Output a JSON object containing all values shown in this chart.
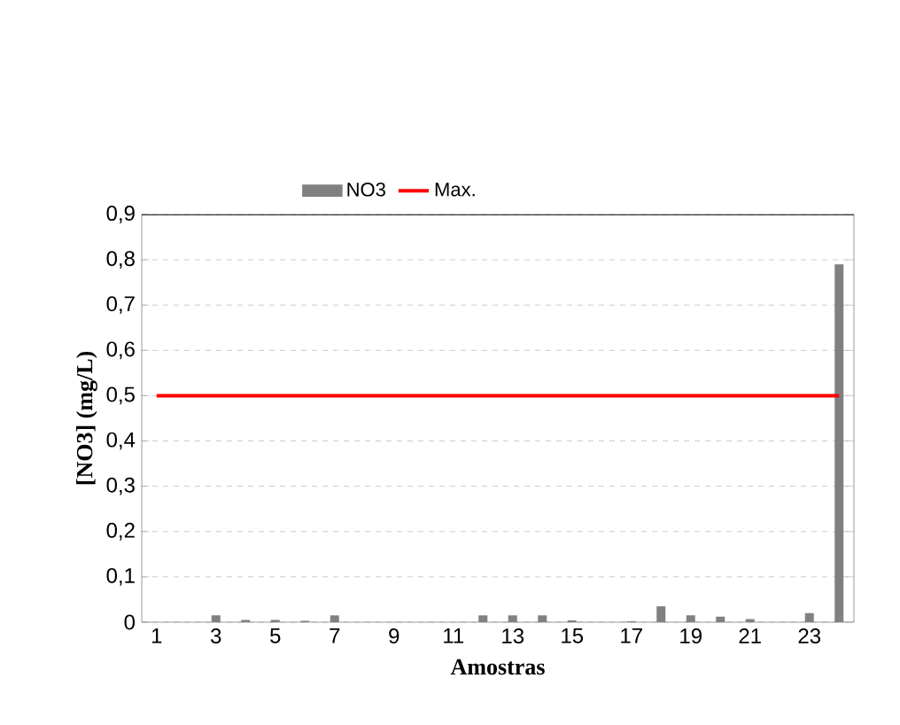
{
  "chart_data": {
    "type": "bar",
    "xlabel": "Amostras",
    "ylabel": "[NO3] (mg/L)",
    "categories": [
      "1",
      null,
      "3",
      null,
      "5",
      null,
      "7",
      null,
      "9",
      null,
      "11",
      null,
      "13",
      null,
      "15",
      null,
      "17",
      null,
      "19",
      null,
      "21",
      null,
      "23",
      null
    ],
    "series": [
      {
        "name": "NO3",
        "color": "#808080",
        "values": [
          0,
          0,
          0.015,
          0.005,
          0.005,
          0.003,
          0.015,
          0,
          0,
          0,
          0,
          0.015,
          0.015,
          0.015,
          0.004,
          0,
          0.002,
          0.035,
          0.015,
          0.012,
          0.007,
          0,
          0.02,
          0.79
        ]
      },
      {
        "name": "Max.",
        "type": "line",
        "color": "#ff0000",
        "values": [
          0.5,
          0.5,
          0.5,
          0.5,
          0.5,
          0.5,
          0.5,
          0.5,
          0.5,
          0.5,
          0.5,
          0.5,
          0.5,
          0.5,
          0.5,
          0.5,
          0.5,
          0.5,
          0.5,
          0.5,
          0.5,
          0.5,
          0.5,
          0.5
        ]
      }
    ],
    "ylim": [
      0,
      0.9
    ],
    "yticks": [
      {
        "value": 0,
        "label": "0"
      },
      {
        "value": 0.1,
        "label": "0,1"
      },
      {
        "value": 0.2,
        "label": "0,2"
      },
      {
        "value": 0.3,
        "label": "0,3"
      },
      {
        "value": 0.4,
        "label": "0,4"
      },
      {
        "value": 0.5,
        "label": "0,5"
      },
      {
        "value": 0.6,
        "label": "0,6"
      },
      {
        "value": 0.7,
        "label": "0,7"
      },
      {
        "value": 0.8,
        "label": "0,8"
      },
      {
        "value": 0.9,
        "label": "0,9"
      }
    ],
    "grid": "y",
    "legend": "top"
  }
}
